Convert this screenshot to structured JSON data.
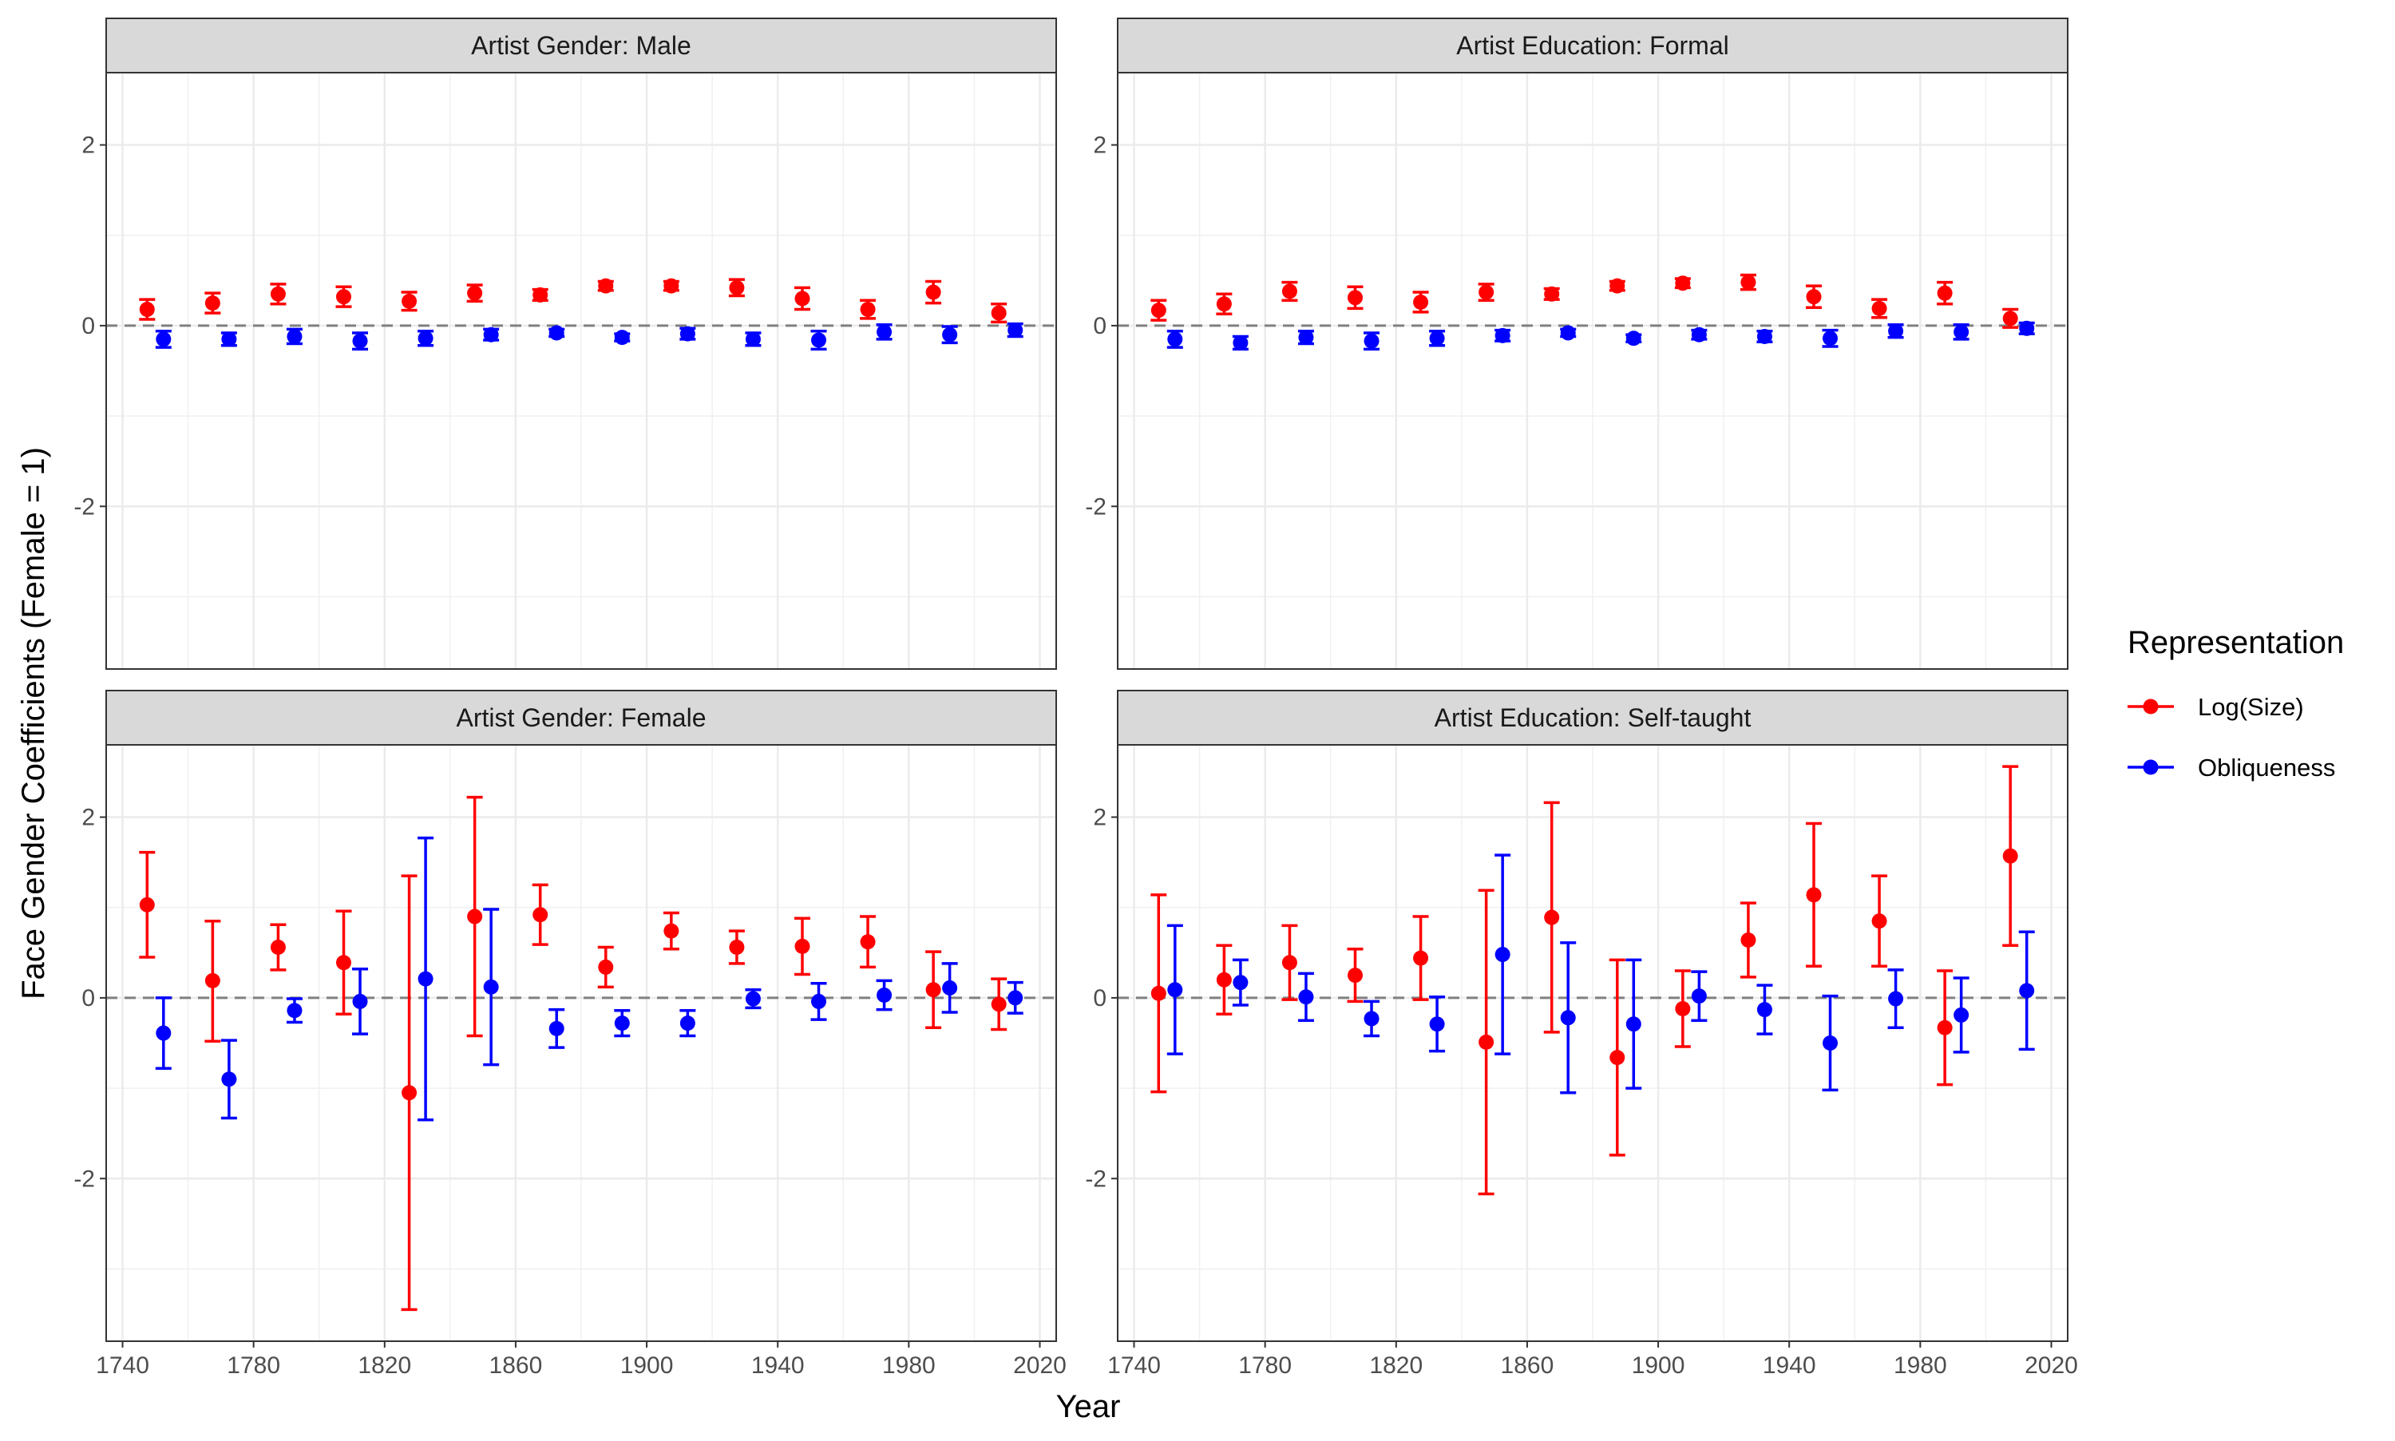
{
  "chart_data": {
    "type": "scatter",
    "subtype": "point-with-error-bars, faceted 2x2",
    "xlabel": "Year",
    "ylabel": "Face Gender Coefficients (Female = 1)",
    "xlim": [
      1735,
      2025
    ],
    "ylim": [
      -3.8,
      2.8
    ],
    "x_ticks": [
      1740,
      1780,
      1820,
      1860,
      1900,
      1940,
      1980,
      2020
    ],
    "x_tick_labels": [
      "1740",
      "1780",
      "1820",
      "1860",
      "1900",
      "1940",
      "1980",
      "2020"
    ],
    "y_ticks": [
      -2,
      0,
      2
    ],
    "y_tick_labels": [
      "-2",
      "0",
      "2"
    ],
    "reference_line": {
      "y": 0,
      "style": "dashed",
      "color": "#808080"
    },
    "grid": true,
    "legend": {
      "title": "Representation",
      "position": "right",
      "entries": [
        {
          "label": "Log(Size)",
          "color": "#ff0000"
        },
        {
          "label": "Obliqueness",
          "color": "#0000ff"
        }
      ]
    },
    "x_centers": [
      1750,
      1770,
      1790,
      1810,
      1830,
      1850,
      1870,
      1890,
      1910,
      1930,
      1950,
      1970,
      1990,
      2010
    ],
    "dodge_years": 2.5,
    "panels": [
      {
        "title": "Artist Gender: Male",
        "series": [
          {
            "name": "Log(Size)",
            "color": "#ff0000",
            "values": [
              0.18,
              0.25,
              0.35,
              0.32,
              0.27,
              0.36,
              0.34,
              0.44,
              0.44,
              0.42,
              0.3,
              0.18,
              0.37,
              0.14
            ],
            "lower": [
              0.07,
              0.14,
              0.24,
              0.21,
              0.17,
              0.27,
              0.28,
              0.39,
              0.39,
              0.33,
              0.18,
              0.08,
              0.25,
              0.04
            ],
            "upper": [
              0.29,
              0.36,
              0.46,
              0.43,
              0.37,
              0.45,
              0.4,
              0.49,
              0.49,
              0.51,
              0.42,
              0.28,
              0.49,
              0.24
            ]
          },
          {
            "name": "Obliqueness",
            "color": "#0000ff",
            "values": [
              -0.15,
              -0.15,
              -0.12,
              -0.17,
              -0.14,
              -0.1,
              -0.08,
              -0.13,
              -0.09,
              -0.15,
              -0.16,
              -0.07,
              -0.1,
              -0.05
            ],
            "lower": [
              -0.24,
              -0.22,
              -0.2,
              -0.26,
              -0.22,
              -0.16,
              -0.12,
              -0.17,
              -0.15,
              -0.22,
              -0.26,
              -0.15,
              -0.19,
              -0.12
            ],
            "upper": [
              -0.06,
              -0.08,
              -0.04,
              -0.08,
              -0.06,
              -0.04,
              -0.04,
              -0.09,
              -0.03,
              -0.08,
              -0.06,
              0.01,
              -0.01,
              0.02
            ]
          }
        ]
      },
      {
        "title": "Artist Education: Formal",
        "series": [
          {
            "name": "Log(Size)",
            "color": "#ff0000",
            "values": [
              0.17,
              0.24,
              0.38,
              0.31,
              0.26,
              0.37,
              0.35,
              0.44,
              0.47,
              0.48,
              0.32,
              0.19,
              0.36,
              0.08
            ],
            "lower": [
              0.06,
              0.13,
              0.28,
              0.19,
              0.15,
              0.28,
              0.29,
              0.39,
              0.42,
              0.4,
              0.2,
              0.09,
              0.24,
              -0.02
            ],
            "upper": [
              0.28,
              0.35,
              0.48,
              0.43,
              0.37,
              0.46,
              0.41,
              0.49,
              0.52,
              0.56,
              0.44,
              0.29,
              0.48,
              0.18
            ]
          },
          {
            "name": "Obliqueness",
            "color": "#0000ff",
            "values": [
              -0.15,
              -0.19,
              -0.13,
              -0.17,
              -0.14,
              -0.11,
              -0.08,
              -0.14,
              -0.1,
              -0.12,
              -0.14,
              -0.06,
              -0.07,
              -0.03
            ],
            "lower": [
              -0.24,
              -0.26,
              -0.2,
              -0.26,
              -0.22,
              -0.17,
              -0.12,
              -0.18,
              -0.15,
              -0.18,
              -0.23,
              -0.13,
              -0.15,
              -0.09
            ],
            "upper": [
              -0.06,
              -0.12,
              -0.06,
              -0.08,
              -0.06,
              -0.05,
              -0.04,
              -0.1,
              -0.05,
              -0.06,
              -0.05,
              0.01,
              0.01,
              0.03
            ]
          }
        ]
      },
      {
        "title": "Artist Gender: Female",
        "series": [
          {
            "name": "Log(Size)",
            "color": "#ff0000",
            "values": [
              1.03,
              0.19,
              0.56,
              0.39,
              -1.05,
              0.9,
              0.92,
              0.34,
              0.74,
              0.56,
              0.57,
              0.62,
              0.09,
              -0.07
            ],
            "lower": [
              0.45,
              -0.48,
              0.31,
              -0.18,
              -3.45,
              -0.42,
              0.59,
              0.12,
              0.54,
              0.38,
              0.26,
              0.34,
              -0.33,
              -0.35
            ],
            "upper": [
              1.61,
              0.85,
              0.81,
              0.96,
              1.35,
              2.22,
              1.25,
              0.56,
              0.94,
              0.74,
              0.88,
              0.9,
              0.51,
              0.21
            ]
          },
          {
            "name": "Obliqueness",
            "color": "#0000ff",
            "values": [
              -0.39,
              -0.9,
              -0.14,
              -0.04,
              0.21,
              0.12,
              -0.34,
              -0.28,
              -0.28,
              -0.01,
              -0.04,
              0.03,
              0.11,
              0.0
            ],
            "lower": [
              -0.78,
              -1.33,
              -0.27,
              -0.4,
              -1.35,
              -0.74,
              -0.55,
              -0.42,
              -0.42,
              -0.11,
              -0.24,
              -0.13,
              -0.16,
              -0.17
            ],
            "upper": [
              0.0,
              -0.47,
              -0.01,
              0.32,
              1.77,
              0.98,
              -0.13,
              -0.14,
              -0.14,
              0.09,
              0.16,
              0.19,
              0.38,
              0.17
            ]
          }
        ]
      },
      {
        "title": "Artist Education: Self-taught",
        "series": [
          {
            "name": "Log(Size)",
            "color": "#ff0000",
            "values": [
              0.05,
              0.2,
              0.39,
              0.25,
              0.44,
              -0.49,
              0.89,
              -0.66,
              -0.12,
              0.64,
              1.14,
              0.85,
              -0.33,
              1.57
            ],
            "lower": [
              -1.04,
              -0.18,
              -0.02,
              -0.04,
              -0.02,
              -2.17,
              -0.38,
              -1.74,
              -0.54,
              0.23,
              0.35,
              0.35,
              -0.96,
              0.58
            ],
            "upper": [
              1.14,
              0.58,
              0.8,
              0.54,
              0.9,
              1.19,
              2.16,
              0.42,
              0.3,
              1.05,
              1.93,
              1.35,
              0.3,
              2.56
            ]
          },
          {
            "name": "Obliqueness",
            "color": "#0000ff",
            "values": [
              0.09,
              0.17,
              0.01,
              -0.23,
              -0.29,
              0.48,
              -0.22,
              -0.29,
              0.02,
              -0.13,
              -0.5,
              -0.01,
              -0.19,
              0.08
            ],
            "lower": [
              -0.62,
              -0.08,
              -0.25,
              -0.42,
              -0.59,
              -0.62,
              -1.05,
              -1.0,
              -0.25,
              -0.4,
              -1.02,
              -0.33,
              -0.6,
              -0.57
            ],
            "upper": [
              0.8,
              0.42,
              0.27,
              -0.04,
              0.01,
              1.58,
              0.61,
              0.42,
              0.29,
              0.14,
              0.02,
              0.31,
              0.22,
              0.73
            ]
          }
        ]
      }
    ]
  }
}
